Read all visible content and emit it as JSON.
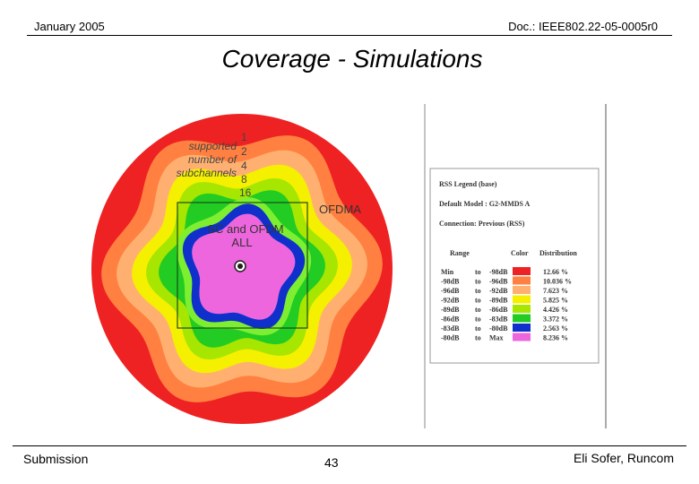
{
  "header": {
    "date": "January 2005",
    "doc": "Doc.: IEEE802.22-05-0005r0"
  },
  "title": "Coverage - Simulations",
  "figure": {
    "annotations": {
      "subchannels_label": [
        "supported",
        "number of",
        "subchannels"
      ],
      "subchannel_values": [
        "1",
        "2",
        "4",
        "8",
        "16"
      ],
      "ofdma_label": "OFDMA",
      "sc_label_line1": "SC and OFDM",
      "sc_label_line2": "ALL"
    },
    "legend": {
      "title": "RSS Legend (base)",
      "model": "Default Model : G2-MMDS A",
      "connection": "Connection: Previous (RSS)",
      "columns": {
        "range": "Range",
        "color": "Color",
        "distribution": "Distribution"
      },
      "rows": [
        {
          "from": "Min",
          "to": "to",
          "upper": "-98dB",
          "color": "#ee2222",
          "dist": "12.66 %"
        },
        {
          "from": "-98dB",
          "to": "to",
          "upper": "-96dB",
          "color": "#ff8040",
          "dist": "10.036 %"
        },
        {
          "from": "-96dB",
          "to": "to",
          "upper": "-92dB",
          "color": "#ffb070",
          "dist": "7.623 %"
        },
        {
          "from": "-92dB",
          "to": "to",
          "upper": "-89dB",
          "color": "#f4f000",
          "dist": "5.825 %"
        },
        {
          "from": "-89dB",
          "to": "to",
          "upper": "-86dB",
          "color": "#a6e600",
          "dist": "4.426 %"
        },
        {
          "from": "-86dB",
          "to": "to",
          "upper": "-83dB",
          "color": "#22cc22",
          "dist": "3.372 %"
        },
        {
          "from": "-83dB",
          "to": "to",
          "upper": "-80dB",
          "color": "#1030cc",
          "dist": "2.563 %"
        },
        {
          "from": "-80dB",
          "to": "to",
          "upper": "Max",
          "color": "#ee66dd",
          "dist": "8.236 %"
        }
      ]
    },
    "rings": [
      {
        "color": "#ee2222"
      },
      {
        "color": "#ff8040"
      },
      {
        "color": "#ffb070"
      },
      {
        "color": "#f4f000"
      },
      {
        "color": "#a6e600"
      },
      {
        "color": "#22cc22"
      },
      {
        "color": "#7eef30"
      },
      {
        "color": "#1030cc"
      },
      {
        "color": "#ee66dd"
      }
    ]
  },
  "footer": {
    "left": "Submission",
    "page": "43",
    "right": "Eli Sofer, Runcom"
  }
}
